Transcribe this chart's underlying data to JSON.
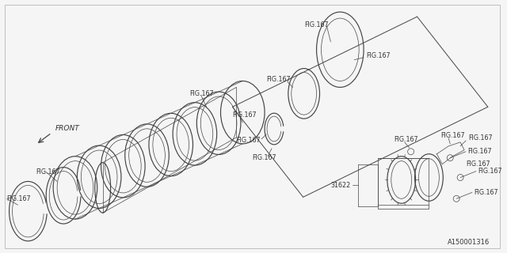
{
  "background_color": "#f5f5f5",
  "line_color": "#444444",
  "text_color": "#333333",
  "part_number": "A150001316",
  "fig_label": "FIG.167",
  "part_label": "31622",
  "front_label": "FRONT",
  "lw_main": 0.85,
  "lw_thin": 0.5,
  "fontsize_label": 5.8
}
